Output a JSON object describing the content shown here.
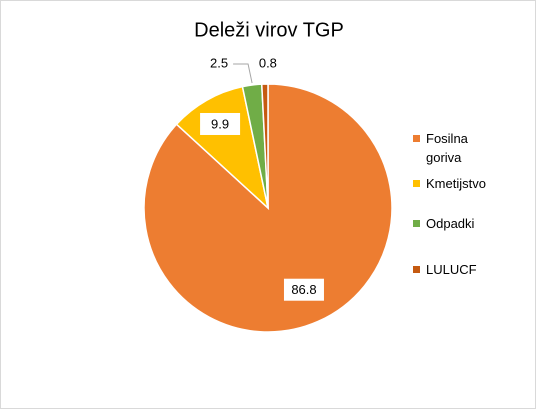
{
  "chart_data": {
    "type": "pie",
    "title": "Deleži virov TGP",
    "categories": [
      "Fosilna goriva",
      "Kmetijstvo",
      "Odpadki",
      "LULUCF"
    ],
    "values": [
      86.8,
      9.9,
      2.5,
      0.8
    ],
    "colors": [
      "#ed7d31",
      "#ffc000",
      "#70ad47",
      "#c55a11"
    ],
    "legend": "right"
  }
}
